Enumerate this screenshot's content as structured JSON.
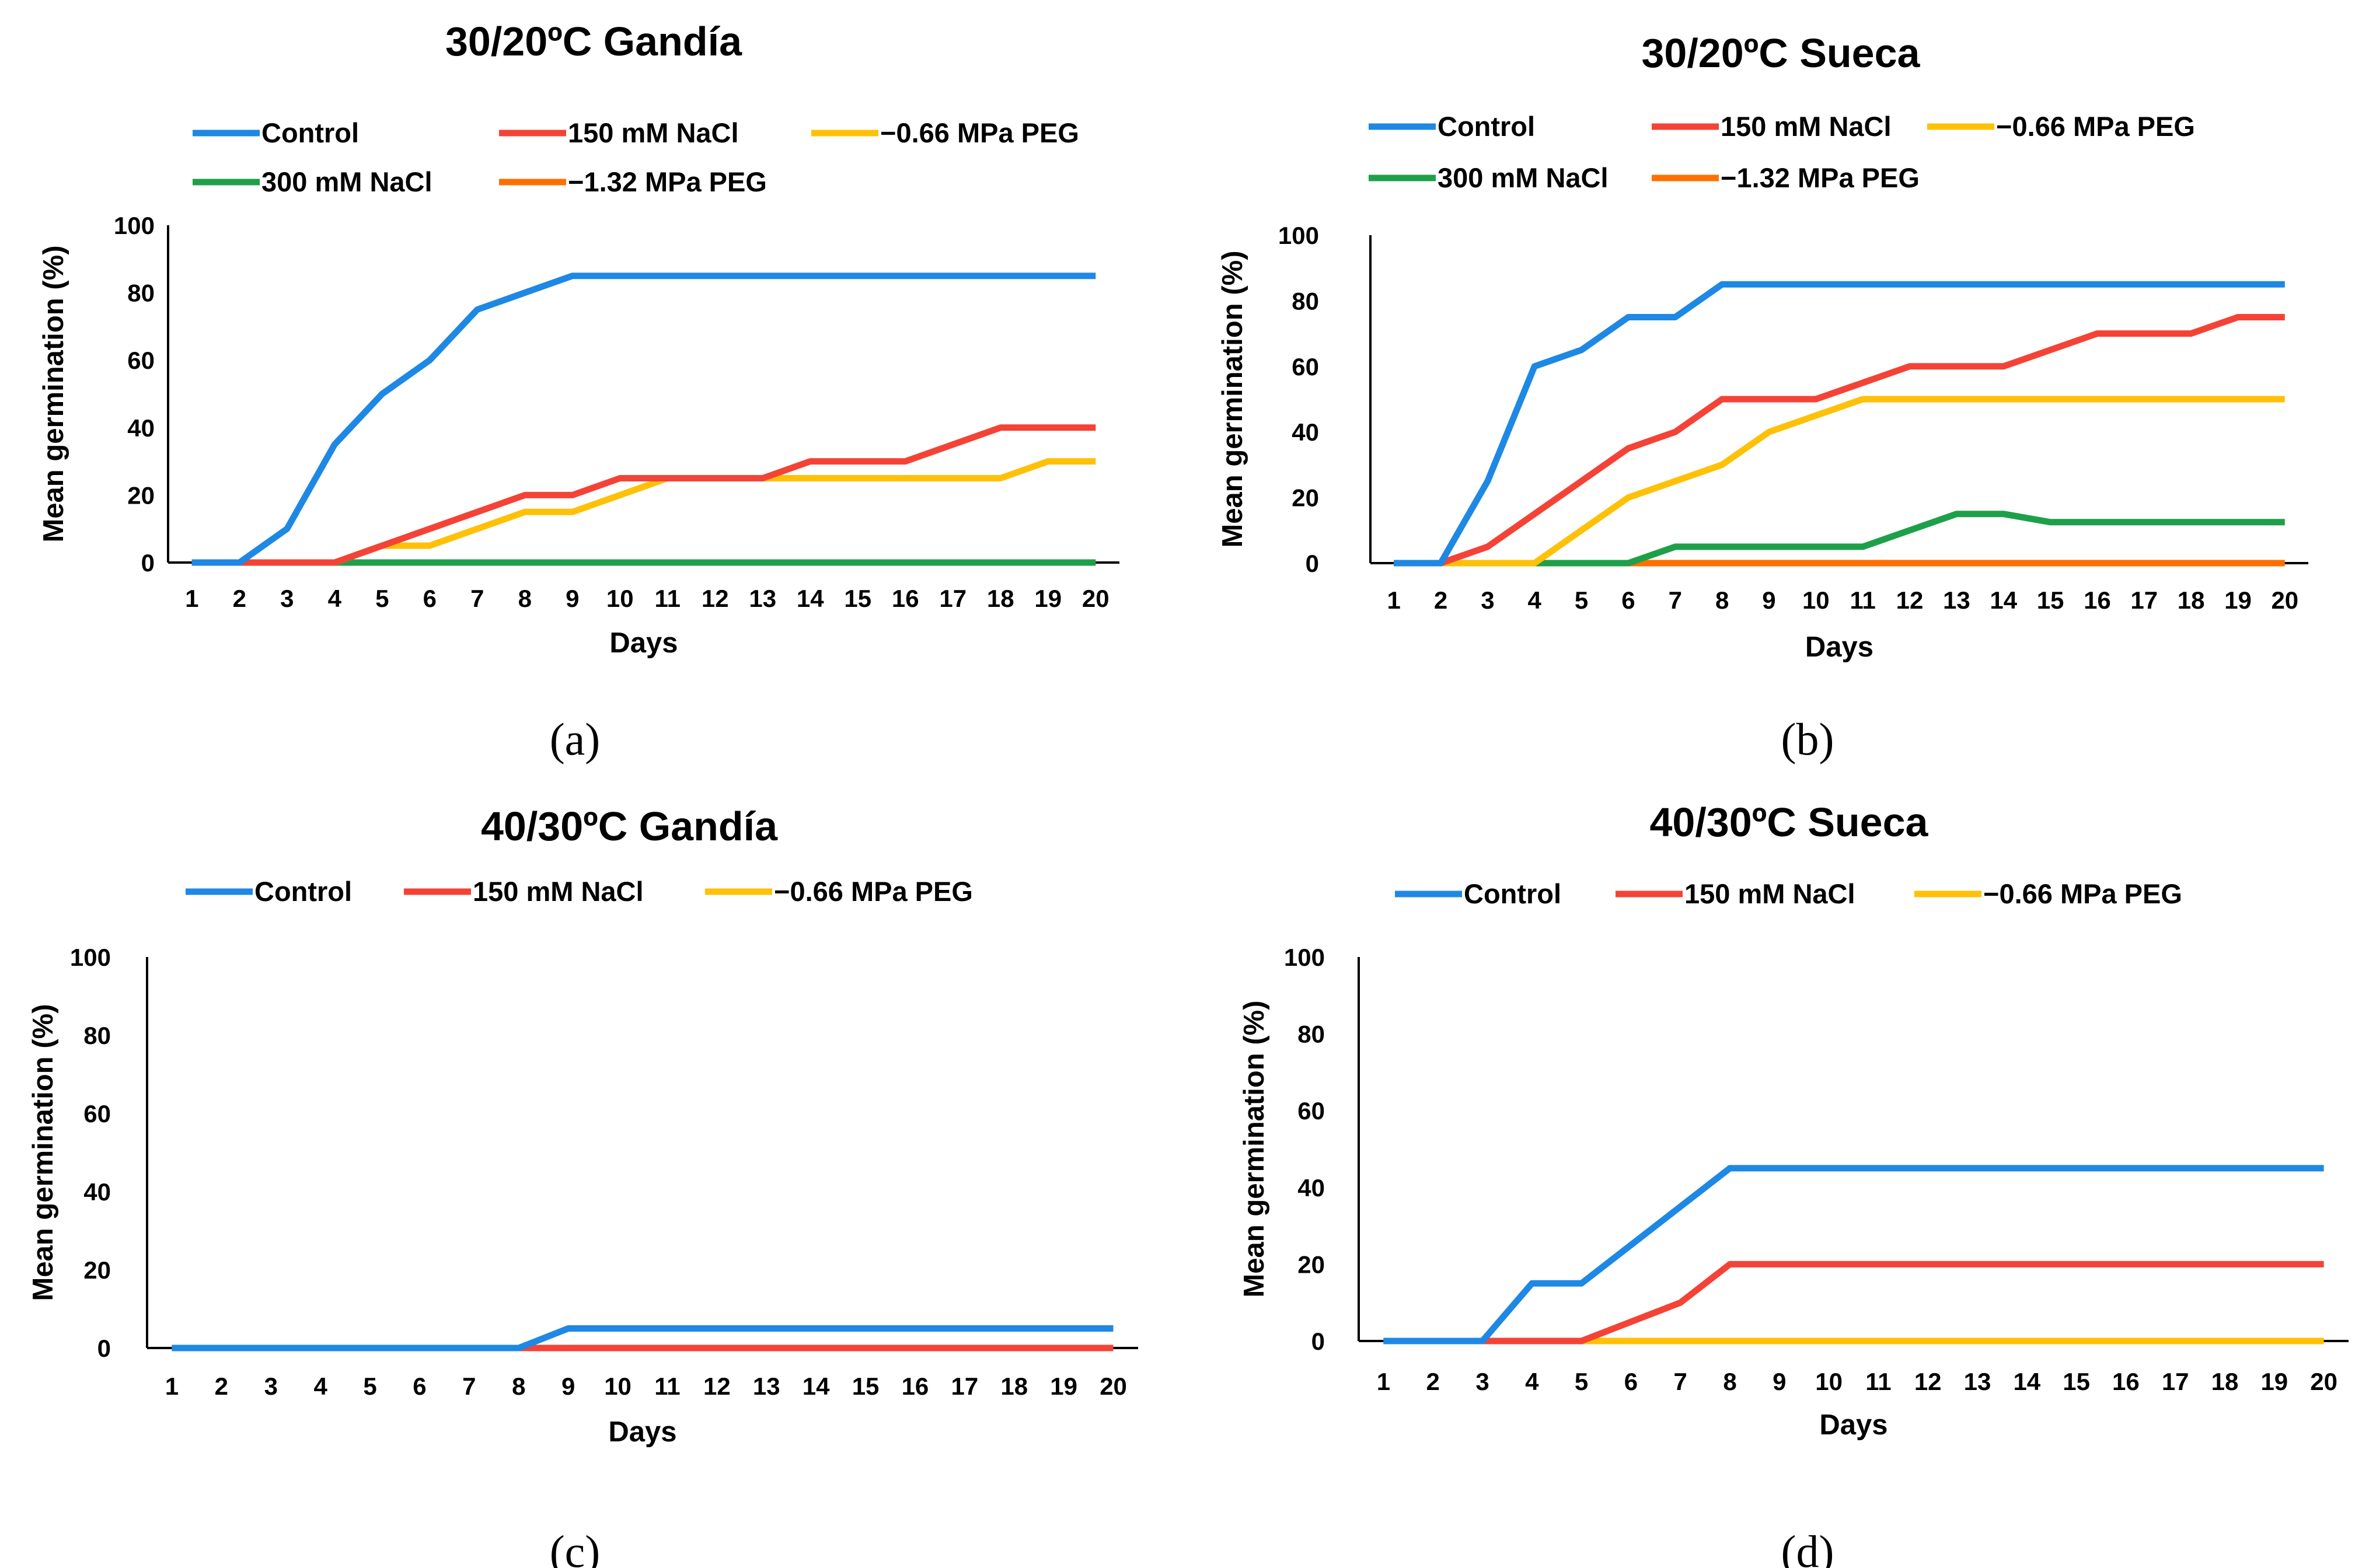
{
  "colors": {
    "control": "#1E88E5",
    "nacl150": "#F44336",
    "peg066": "#FFC107",
    "nacl300": "#1EA04A",
    "peg132": "#FF6F00"
  },
  "chart_data": [
    {
      "type": "line",
      "panel": "a",
      "caption": "(a)",
      "title": "30/20ºC Gandía",
      "xlabel": "Days",
      "ylabel": "Mean germination (%)",
      "ylim": [
        0,
        100
      ],
      "yticks": [
        "0",
        "20",
        "40",
        "60",
        "80",
        "100"
      ],
      "categories": [
        "1",
        "2",
        "3",
        "4",
        "5",
        "6",
        "7",
        "8",
        "9",
        "10",
        "11",
        "12",
        "13",
        "14",
        "15",
        "16",
        "17",
        "18",
        "19",
        "20"
      ],
      "legend": "top",
      "series": [
        {
          "name": "Control",
          "color": "#1E88E5",
          "values": [
            0,
            0,
            10,
            35,
            50,
            60,
            75,
            80,
            85,
            85,
            85,
            85,
            85,
            85,
            85,
            85,
            85,
            85,
            85,
            85
          ]
        },
        {
          "name": "150 mM NaCl",
          "color": "#F44336",
          "values": [
            0,
            0,
            0,
            0,
            5,
            10,
            15,
            20,
            20,
            25,
            25,
            25,
            25,
            30,
            30,
            30,
            35,
            40,
            40,
            40
          ]
        },
        {
          "name": "−0.66 MPa PEG",
          "color": "#FFC107",
          "values": [
            0,
            0,
            0,
            0,
            5,
            5,
            10,
            15,
            15,
            20,
            25,
            25,
            25,
            25,
            25,
            25,
            25,
            25,
            30,
            30
          ]
        },
        {
          "name": "300 mM NaCl",
          "color": "#1EA04A",
          "values": [
            0,
            0,
            0,
            0,
            0,
            0,
            0,
            0,
            0,
            0,
            0,
            0,
            0,
            0,
            0,
            0,
            0,
            0,
            0,
            0
          ]
        },
        {
          "name": "−1.32 MPa PEG",
          "color": "#FF6F00",
          "values": [
            0,
            0,
            0,
            0,
            0,
            0,
            0,
            0,
            0,
            0,
            0,
            0,
            0,
            0,
            0,
            0,
            0,
            0,
            0,
            0
          ]
        }
      ]
    },
    {
      "type": "line",
      "panel": "b",
      "caption": "(b)",
      "title": "30/20ºC Sueca",
      "xlabel": "Days",
      "ylabel": "Mean germination (%)",
      "ylim": [
        0,
        100
      ],
      "yticks": [
        "0",
        "20",
        "40",
        "60",
        "80",
        "100"
      ],
      "categories": [
        "1",
        "2",
        "3",
        "4",
        "5",
        "6",
        "7",
        "8",
        "9",
        "10",
        "11",
        "12",
        "13",
        "14",
        "15",
        "16",
        "17",
        "18",
        "19",
        "20"
      ],
      "legend": "top",
      "series": [
        {
          "name": "Control",
          "color": "#1E88E5",
          "values": [
            0,
            0,
            25,
            60,
            65,
            75,
            75,
            85,
            85,
            85,
            85,
            85,
            85,
            85,
            85,
            85,
            85,
            85,
            85,
            85
          ]
        },
        {
          "name": "150 mM NaCl",
          "color": "#F44336",
          "values": [
            0,
            0,
            5,
            15,
            25,
            35,
            40,
            50,
            50,
            50,
            55,
            60,
            60,
            60,
            65,
            70,
            70,
            70,
            75,
            75
          ]
        },
        {
          "name": "−0.66 MPa PEG",
          "color": "#FFC107",
          "values": [
            0,
            0,
            0,
            0,
            10,
            20,
            25,
            30,
            40,
            45,
            50,
            50,
            50,
            50,
            50,
            50,
            50,
            50,
            50,
            50
          ]
        },
        {
          "name": "300 mM NaCl",
          "color": "#1EA04A",
          "values": [
            0,
            0,
            0,
            0,
            0,
            0,
            5,
            5,
            5,
            5,
            5,
            10,
            15,
            15,
            12.5,
            12.5,
            12.5,
            12.5,
            12.5,
            12.5
          ]
        },
        {
          "name": "−1.32 MPa PEG",
          "color": "#FF6F00",
          "values": [
            0,
            0,
            0,
            0,
            0,
            0,
            0,
            0,
            0,
            0,
            0,
            0,
            0,
            0,
            0,
            0,
            0,
            0,
            0,
            0
          ]
        }
      ]
    },
    {
      "type": "line",
      "panel": "c",
      "caption": "(c)",
      "title": "40/30ºC Gandía",
      "xlabel": "Days",
      "ylabel": "Mean germination (%)",
      "ylim": [
        0,
        100
      ],
      "yticks": [
        "0",
        "20",
        "40",
        "60",
        "80",
        "100"
      ],
      "categories": [
        "1",
        "2",
        "3",
        "4",
        "5",
        "6",
        "7",
        "8",
        "9",
        "10",
        "11",
        "12",
        "13",
        "14",
        "15",
        "16",
        "17",
        "18",
        "19",
        "20"
      ],
      "legend": "top",
      "series": [
        {
          "name": "Control",
          "color": "#1E88E5",
          "values": [
            0,
            0,
            0,
            0,
            0,
            0,
            0,
            0,
            5,
            5,
            5,
            5,
            5,
            5,
            5,
            5,
            5,
            5,
            5,
            5
          ]
        },
        {
          "name": "150 mM NaCl",
          "color": "#F44336",
          "values": [
            0,
            0,
            0,
            0,
            0,
            0,
            0,
            0,
            0,
            0,
            0,
            0,
            0,
            0,
            0,
            0,
            0,
            0,
            0,
            0
          ]
        },
        {
          "name": "−0.66 MPa PEG",
          "color": "#FFC107",
          "values": [
            0,
            0,
            0,
            0,
            0,
            0,
            0,
            0,
            0,
            0,
            0,
            0,
            0,
            0,
            0,
            0,
            0,
            0,
            0,
            0
          ]
        }
      ]
    },
    {
      "type": "line",
      "panel": "d",
      "caption": "(d)",
      "title": "40/30ºC Sueca",
      "xlabel": "Days",
      "ylabel": "Mean germination (%)",
      "ylim": [
        0,
        100
      ],
      "yticks": [
        "0",
        "20",
        "40",
        "60",
        "80",
        "100"
      ],
      "categories": [
        "1",
        "2",
        "3",
        "4",
        "5",
        "6",
        "7",
        "8",
        "9",
        "10",
        "11",
        "12",
        "13",
        "14",
        "15",
        "16",
        "17",
        "18",
        "19",
        "20"
      ],
      "legend": "top",
      "series": [
        {
          "name": "Control",
          "color": "#1E88E5",
          "values": [
            0,
            0,
            0,
            15,
            15,
            25,
            35,
            45,
            45,
            45,
            45,
            45,
            45,
            45,
            45,
            45,
            45,
            45,
            45,
            45
          ]
        },
        {
          "name": "150 mM NaCl",
          "color": "#F44336",
          "values": [
            0,
            0,
            0,
            0,
            0,
            5,
            10,
            20,
            20,
            20,
            20,
            20,
            20,
            20,
            20,
            20,
            20,
            20,
            20,
            20
          ]
        },
        {
          "name": "−0.66 MPa PEG",
          "color": "#FFC107",
          "values": [
            0,
            0,
            0,
            0,
            0,
            0,
            0,
            0,
            0,
            0,
            0,
            0,
            0,
            0,
            0,
            0,
            0,
            0,
            0,
            0
          ]
        }
      ]
    }
  ]
}
